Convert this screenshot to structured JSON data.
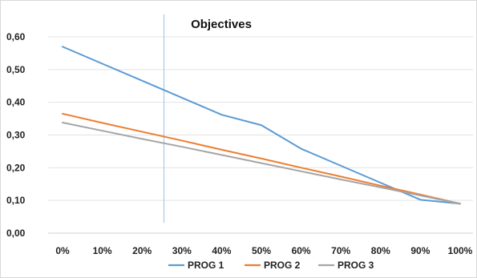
{
  "chart_data": {
    "type": "line",
    "title": "Objectives",
    "xlabel": "",
    "ylabel": "",
    "x": [
      "0%",
      "10%",
      "20%",
      "30%",
      "40%",
      "50%",
      "60%",
      "70%",
      "80%",
      "90%",
      "100%"
    ],
    "x_values": [
      0,
      0.1,
      0.2,
      0.3,
      0.4,
      0.5,
      0.6,
      0.7,
      0.8,
      0.9,
      1.0
    ],
    "xlim": [
      0,
      1
    ],
    "ylim": [
      0,
      0.6
    ],
    "y_ticks": [
      0,
      0.1,
      0.2,
      0.3,
      0.4,
      0.5,
      0.6
    ],
    "y_tick_labels": [
      "0,00",
      "0,10",
      "0,20",
      "0,30",
      "0,40",
      "0,50",
      "0,60"
    ],
    "grid": true,
    "legend": "bottom",
    "series": [
      {
        "name": "PROG 1",
        "color": "#5B9BD5",
        "values": [
          0.57,
          0.518,
          0.466,
          0.414,
          0.362,
          0.33,
          0.258,
          0.206,
          0.154,
          0.102,
          0.09
        ]
      },
      {
        "name": "PROG 2",
        "color": "#ED7D31",
        "values": [
          0.365,
          0.337,
          0.31,
          0.283,
          0.255,
          0.228,
          0.2,
          0.173,
          0.145,
          0.118,
          0.09
        ]
      },
      {
        "name": "PROG 3",
        "color": "#A5A5A5",
        "values": [
          0.338,
          0.313,
          0.288,
          0.264,
          0.239,
          0.214,
          0.189,
          0.164,
          0.14,
          0.115,
          0.09
        ]
      }
    ],
    "vertical_marker": {
      "x": 0.255,
      "color": "#9DC3E6"
    }
  }
}
